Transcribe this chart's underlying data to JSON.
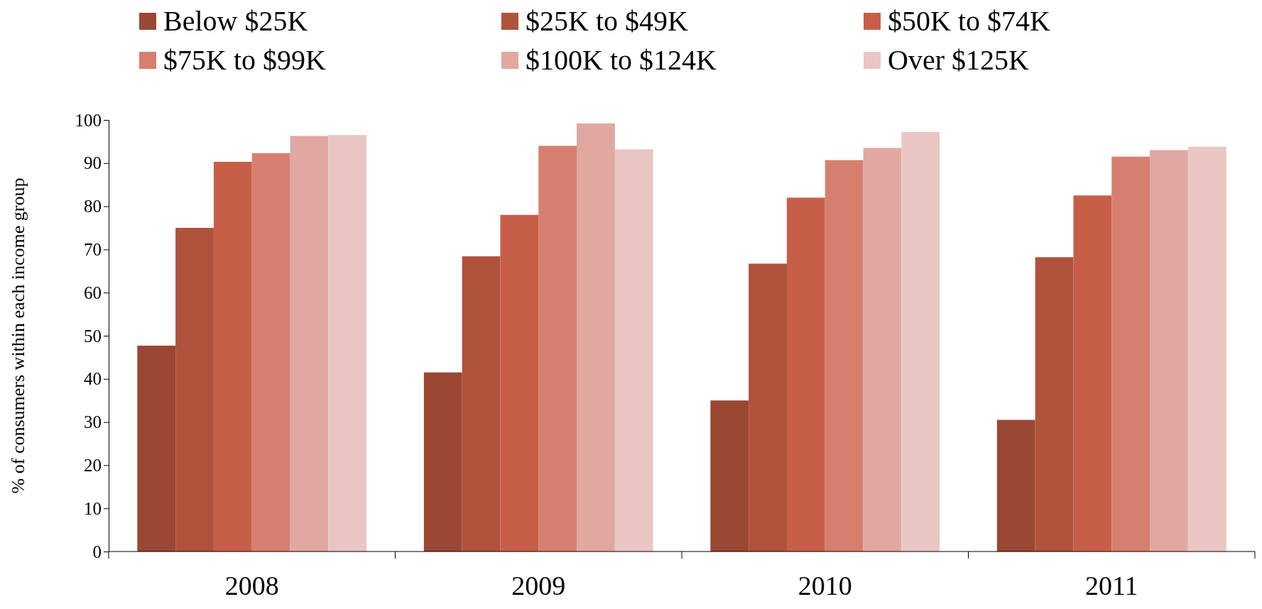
{
  "chart_data": {
    "type": "bar",
    "ylabel": "% of consumers within each  income group",
    "categories": [
      "2008",
      "2009",
      "2010",
      "2011"
    ],
    "series": [
      {
        "name": "Below $25K",
        "color": "#9a4733",
        "values": [
          47.7,
          41.5,
          35,
          30.5
        ]
      },
      {
        "name": "$25K to $49K",
        "color": "#b0533c",
        "values": [
          75,
          68.4,
          66.7,
          68.2
        ]
      },
      {
        "name": "$50K to $74K",
        "color": "#c75f48",
        "values": [
          90.3,
          78,
          82,
          82.5
        ]
      },
      {
        "name": "$75K to $99K",
        "color": "#d77f6e",
        "values": [
          92.3,
          94,
          90.7,
          91.5
        ]
      },
      {
        "name": "$100K to $124K",
        "color": "#e0a8a0",
        "values": [
          96.3,
          99.2,
          93.5,
          93
        ]
      },
      {
        "name": "Over $125K",
        "color": "#e9c6c3",
        "values": [
          96.5,
          93.2,
          97.2,
          93.8
        ]
      }
    ],
    "ylim": [
      0,
      100
    ],
    "yticks": [
      0,
      10,
      20,
      30,
      40,
      50,
      60,
      70,
      80,
      90,
      100
    ],
    "grid": false,
    "legend": "top"
  }
}
